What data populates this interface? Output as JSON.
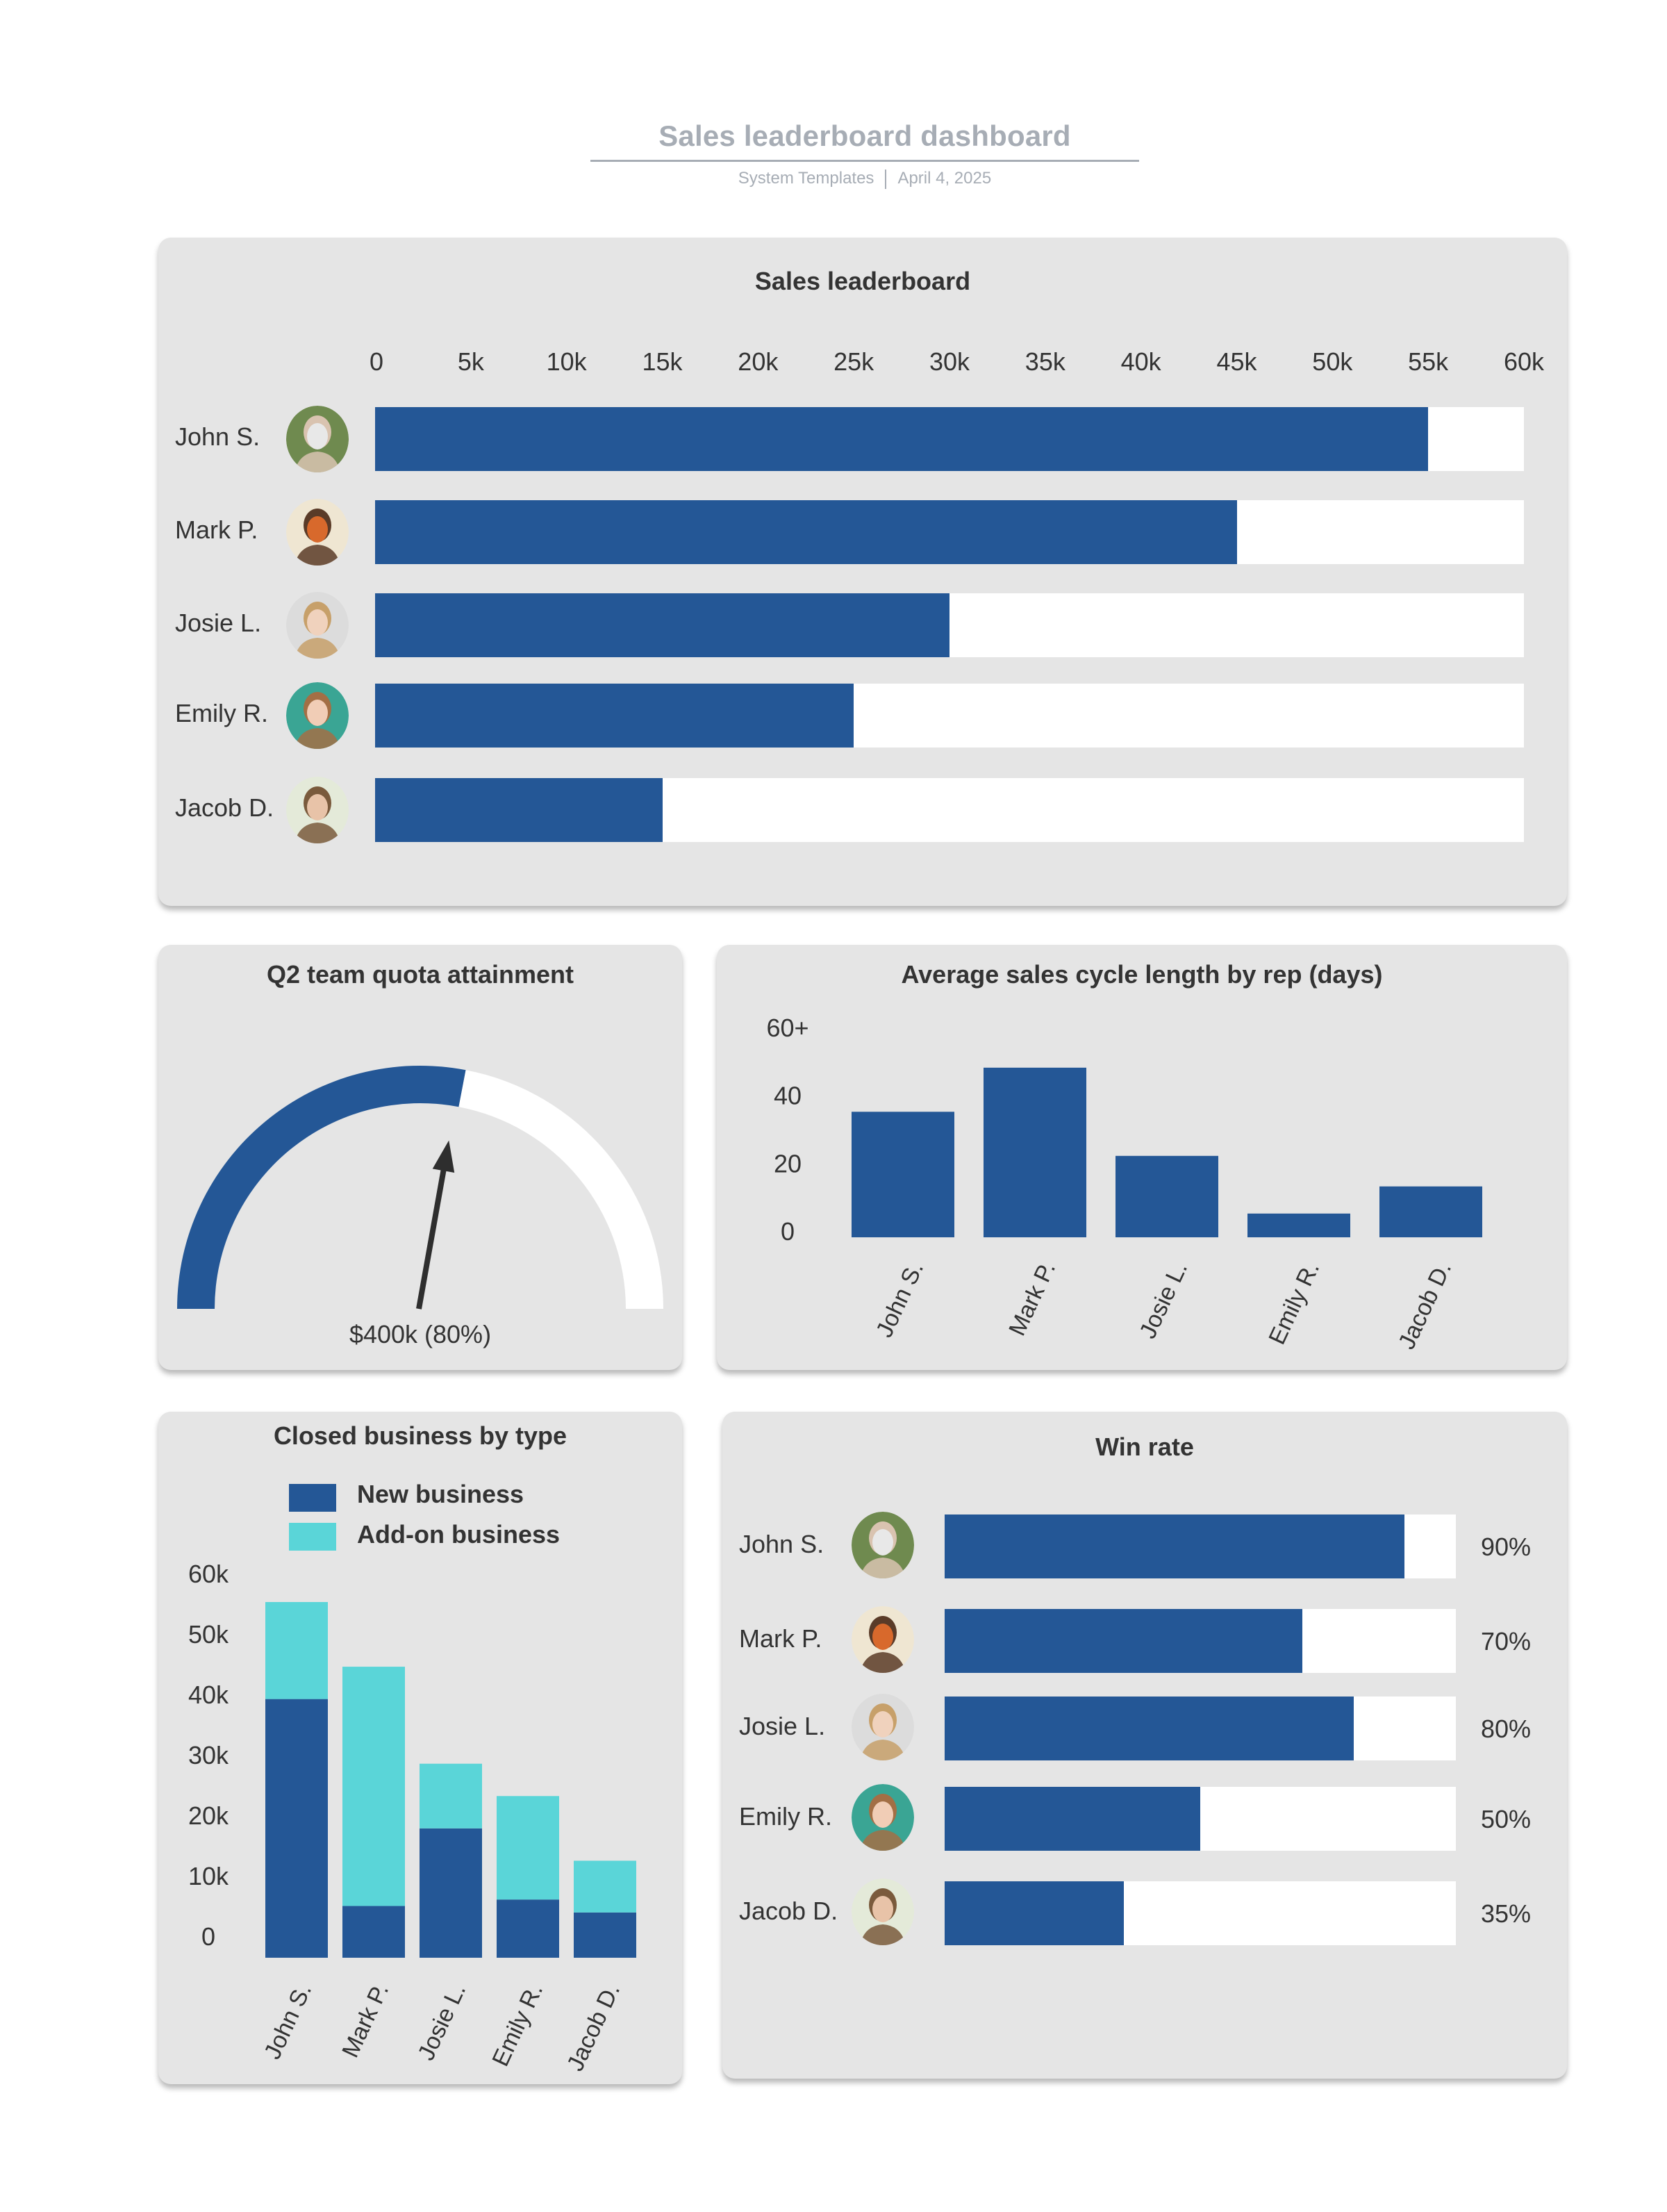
{
  "header": {
    "title": "Sales leaderboard dashboard",
    "owner": "System Templates",
    "date": "April 4, 2025"
  },
  "colors": {
    "primary": "#245796",
    "secondary": "#5ad5d8",
    "track": "#ffffff",
    "panel": "#e5e5e5",
    "text": "#333333",
    "header_text": "#a7adb5",
    "needle": "#2e2e2e"
  },
  "reps": [
    {
      "name": "John S.",
      "avatar": "avatar-john",
      "avatar_colors": [
        "#6f8a4f",
        "#d9c3b0",
        "#e8e8e8"
      ]
    },
    {
      "name": "Mark P.",
      "avatar": "avatar-mark",
      "avatar_colors": [
        "#efe6d2",
        "#5a3b28",
        "#d8692c"
      ]
    },
    {
      "name": "Josie L.",
      "avatar": "avatar-josie",
      "avatar_colors": [
        "#dcdcdc",
        "#c7a06a",
        "#f0d2bd"
      ]
    },
    {
      "name": "Emily R.",
      "avatar": "avatar-emily",
      "avatar_colors": [
        "#3aa594",
        "#a36f45",
        "#f1cdb6"
      ]
    },
    {
      "name": "Jacob D.",
      "avatar": "avatar-jacob",
      "avatar_colors": [
        "#e4ead9",
        "#7a5a3c",
        "#e8c3a8"
      ]
    }
  ],
  "chart_data": [
    {
      "id": "sales_leaderboard",
      "type": "bar",
      "orientation": "horizontal",
      "title": "Sales leaderboard",
      "categories": [
        "John S.",
        "Mark P.",
        "Josie L.",
        "Emily R.",
        "Jacob D."
      ],
      "values": [
        55000,
        45000,
        30000,
        25000,
        15000
      ],
      "xlim": [
        0,
        60000
      ],
      "x_ticks": [
        "0",
        "5k",
        "10k",
        "15k",
        "20k",
        "25k",
        "30k",
        "35k",
        "40k",
        "45k",
        "50k",
        "55k",
        "60k"
      ],
      "axis_position": "top",
      "grid": false
    },
    {
      "id": "quota_gauge",
      "type": "gauge",
      "title": "Q2 team quota attainment",
      "value_label": "$400k (80%)",
      "value": 400000,
      "percent": 80,
      "arc_fill_fraction": 0.56
    },
    {
      "id": "sales_cycle",
      "type": "bar",
      "title": "Average sales cycle length by rep (days)",
      "categories": [
        "John S.",
        "Mark P.",
        "Josie L.",
        "Emily R.",
        "Jacob D."
      ],
      "values": [
        37,
        50,
        24,
        7,
        15
      ],
      "ylim": [
        0,
        60
      ],
      "y_ticks": [
        "0",
        "20",
        "40",
        "60+"
      ],
      "xlabel_rotation": "-65deg",
      "grid": false
    },
    {
      "id": "closed_business",
      "type": "bar",
      "stacked": true,
      "title": "Closed business by type",
      "categories": [
        "John S.",
        "Mark P.",
        "Josie L.",
        "Emily R.",
        "Jacob D."
      ],
      "series": [
        {
          "name": "New business",
          "color": "#245796",
          "values": [
            40000,
            8000,
            20000,
            9000,
            7000
          ]
        },
        {
          "name": "Add-on business",
          "color": "#5ad5d8",
          "values": [
            15000,
            37000,
            10000,
            16000,
            8000
          ]
        }
      ],
      "ylim": [
        0,
        60000
      ],
      "y_ticks": [
        "0",
        "10k",
        "20k",
        "30k",
        "40k",
        "50k",
        "60k"
      ],
      "legend": "top",
      "grid": false
    },
    {
      "id": "win_rate",
      "type": "bar",
      "orientation": "horizontal",
      "title": "Win rate",
      "categories": [
        "John S.",
        "Mark P.",
        "Josie L.",
        "Emily R.",
        "Jacob D."
      ],
      "values": [
        90,
        70,
        80,
        50,
        35
      ],
      "value_labels": [
        "90%",
        "70%",
        "80%",
        "50%",
        "35%"
      ],
      "xlim": [
        0,
        100
      ]
    }
  ]
}
